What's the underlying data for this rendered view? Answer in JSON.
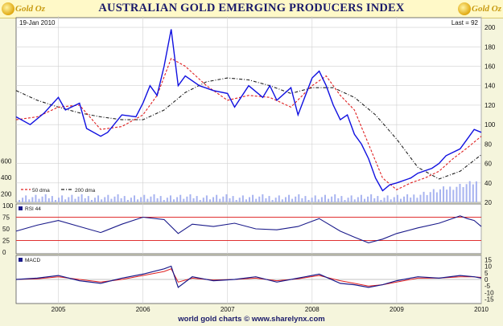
{
  "header": {
    "title": "AUSTRALIAN GOLD EMERGING PRODUCERS INDEX",
    "logo_left": "Gold Oz",
    "logo_right": "Gold Oz"
  },
  "footer": {
    "credit": "world gold charts © www.sharelynx.com"
  },
  "colors": {
    "price": "#1010e0",
    "ma50": "#e02020",
    "ma200": "#202020",
    "rsi_lines": "#e03030",
    "macd": "#1a1a8a",
    "macd_signal": "#e02020",
    "volume": "#a8b4f0",
    "background": "#ffffff"
  },
  "chart_data": [
    {
      "type": "line",
      "panel": "price",
      "date_label": "19-Jan 2010",
      "last_label": "Last = 92",
      "y_ticks": [
        20,
        40,
        60,
        80,
        100,
        120,
        140,
        160,
        180,
        200
      ],
      "ylim": [
        20,
        210
      ],
      "x_ticks": [
        "2005",
        "2006",
        "2007",
        "2008",
        "2009",
        "2010"
      ],
      "xlim": [
        "2004-07",
        "2010-01"
      ],
      "grid": true,
      "legend_placement": "bottom-left",
      "series": [
        {
          "name": "50 dma",
          "style": "dashed",
          "x": [
            "2004-07",
            "2004-10",
            "2005-01",
            "2005-04",
            "2005-07",
            "2005-10",
            "2006-01",
            "2006-03",
            "2006-05",
            "2006-07",
            "2006-10",
            "2007-01",
            "2007-04",
            "2007-07",
            "2007-10",
            "2008-01",
            "2008-03",
            "2008-05",
            "2008-07",
            "2008-09",
            "2008-11",
            "2009-01",
            "2009-03",
            "2009-05",
            "2009-07",
            "2009-09",
            "2009-11",
            "2010-01"
          ],
          "values": [
            105,
            108,
            118,
            120,
            95,
            98,
            110,
            130,
            168,
            160,
            140,
            125,
            130,
            128,
            118,
            140,
            150,
            130,
            115,
            80,
            45,
            33,
            40,
            45,
            52,
            65,
            76,
            88
          ]
        },
        {
          "name": "200 dma",
          "style": "dash-dot",
          "x": [
            "2004-07",
            "2004-10",
            "2005-01",
            "2005-04",
            "2005-07",
            "2005-10",
            "2006-01",
            "2006-04",
            "2006-07",
            "2006-10",
            "2007-01",
            "2007-04",
            "2007-07",
            "2007-10",
            "2008-01",
            "2008-04",
            "2008-07",
            "2008-10",
            "2009-01",
            "2009-04",
            "2009-07",
            "2009-10",
            "2010-01"
          ],
          "values": [
            135,
            125,
            118,
            112,
            108,
            105,
            105,
            115,
            133,
            144,
            148,
            146,
            140,
            132,
            138,
            138,
            128,
            110,
            85,
            56,
            44,
            52,
            69
          ]
        },
        {
          "name": "",
          "style": "solid",
          "x": [
            "2004-07",
            "2004-09",
            "2004-11",
            "2005-01",
            "2005-02",
            "2005-04",
            "2005-05",
            "2005-07",
            "2005-08",
            "2005-10",
            "2005-12",
            "2006-01",
            "2006-02",
            "2006-03",
            "2006-04",
            "2006-05",
            "2006-06",
            "2006-07",
            "2006-09",
            "2006-11",
            "2007-01",
            "2007-02",
            "2007-04",
            "2007-06",
            "2007-07",
            "2007-08",
            "2007-10",
            "2007-11",
            "2008-01",
            "2008-02",
            "2008-03",
            "2008-04",
            "2008-05",
            "2008-06",
            "2008-07",
            "2008-08",
            "2008-09",
            "2008-10",
            "2008-11",
            "2008-12",
            "2009-01",
            "2009-03",
            "2009-04",
            "2009-06",
            "2009-07",
            "2009-08",
            "2009-10",
            "2009-11",
            "2009-12",
            "2010-01"
          ],
          "values": [
            108,
            100,
            112,
            128,
            115,
            122,
            96,
            88,
            92,
            110,
            108,
            122,
            140,
            130,
            160,
            198,
            140,
            150,
            140,
            135,
            132,
            118,
            140,
            128,
            140,
            125,
            138,
            110,
            148,
            155,
            140,
            120,
            105,
            110,
            90,
            80,
            65,
            45,
            32,
            38,
            40,
            45,
            50,
            55,
            60,
            68,
            75,
            85,
            95,
            92
          ]
        }
      ],
      "volume_axis_ticks": [
        200,
        400,
        600
      ]
    },
    {
      "type": "line",
      "panel": "rsi",
      "label": "RSI 44",
      "y_ticks": [
        0,
        25,
        50,
        75,
        100
      ],
      "ylim": [
        0,
        100
      ],
      "reference_lines": [
        25,
        75
      ],
      "series": [
        {
          "name": "",
          "x": [
            "2004-07",
            "2004-10",
            "2005-01",
            "2005-04",
            "2005-07",
            "2005-10",
            "2006-01",
            "2006-04",
            "2006-06",
            "2006-08",
            "2006-11",
            "2007-02",
            "2007-05",
            "2007-08",
            "2007-11",
            "2008-02",
            "2008-05",
            "2008-07",
            "2008-09",
            "2008-11",
            "2009-01",
            "2009-04",
            "2009-07",
            "2009-10",
            "2009-11",
            "2009-12",
            "2010-01"
          ],
          "values": [
            45,
            58,
            68,
            55,
            42,
            60,
            75,
            70,
            40,
            60,
            55,
            62,
            50,
            48,
            55,
            72,
            45,
            32,
            20,
            28,
            40,
            52,
            62,
            78,
            72,
            68,
            55
          ]
        }
      ]
    },
    {
      "type": "line",
      "panel": "macd",
      "label": "MACD",
      "y_ticks": [
        -15,
        -10,
        -5,
        0,
        5,
        10,
        15
      ],
      "ylim": [
        -17,
        17
      ],
      "series": [
        {
          "name": "",
          "x": [
            "2004-07",
            "2004-10",
            "2005-01",
            "2005-04",
            "2005-07",
            "2005-10",
            "2006-01",
            "2006-04",
            "2006-05",
            "2006-06",
            "2006-08",
            "2006-11",
            "2007-02",
            "2007-05",
            "2007-08",
            "2007-11",
            "2008-02",
            "2008-05",
            "2008-07",
            "2008-09",
            "2008-11",
            "2009-01",
            "2009-04",
            "2009-07",
            "2009-10",
            "2009-12",
            "2010-01"
          ],
          "values": [
            0,
            1,
            3,
            -1,
            -3,
            1,
            4,
            8,
            10,
            -6,
            2,
            -1,
            0,
            2,
            -2,
            1,
            4,
            -3,
            -4,
            -6,
            -4,
            -1,
            2,
            1,
            3,
            2,
            1
          ]
        },
        {
          "name": "",
          "x": [
            "2004-07",
            "2004-10",
            "2005-01",
            "2005-04",
            "2005-07",
            "2005-10",
            "2006-01",
            "2006-04",
            "2006-05",
            "2006-06",
            "2006-08",
            "2006-11",
            "2007-02",
            "2007-05",
            "2007-08",
            "2007-11",
            "2008-02",
            "2008-05",
            "2008-07",
            "2008-09",
            "2008-11",
            "2009-01",
            "2009-04",
            "2009-07",
            "2009-10",
            "2009-12",
            "2010-01"
          ],
          "values": [
            0,
            0.5,
            2,
            0,
            -2,
            0,
            3,
            6,
            8,
            -2,
            1,
            -0.5,
            0,
            1,
            -1,
            0.5,
            3,
            -1,
            -3,
            -5,
            -4,
            -2,
            1,
            1,
            2,
            2,
            1.5
          ]
        }
      ]
    }
  ]
}
